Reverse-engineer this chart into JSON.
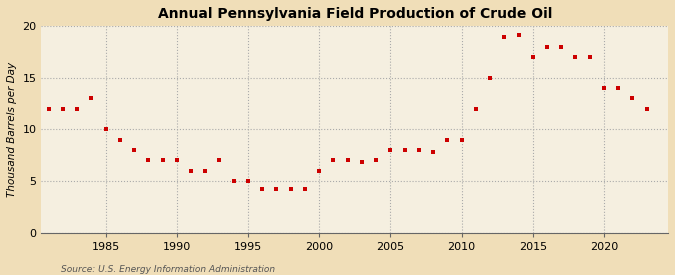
{
  "title": "Annual Pennsylvania Field Production of Crude Oil",
  "ylabel": "Thousand Barrels per Day",
  "source": "Source: U.S. Energy Information Administration",
  "outer_bg": "#f0deb8",
  "plot_bg": "#f5efe0",
  "marker_color": "#cc0000",
  "marker": "s",
  "marker_size": 3.5,
  "xlim": [
    1980.5,
    2024.5
  ],
  "ylim": [
    0,
    20
  ],
  "yticks": [
    0,
    5,
    10,
    15,
    20
  ],
  "xticks": [
    1985,
    1990,
    1995,
    2000,
    2005,
    2010,
    2015,
    2020
  ],
  "years": [
    1981,
    1982,
    1983,
    1984,
    1985,
    1986,
    1987,
    1988,
    1989,
    1990,
    1991,
    1992,
    1993,
    1994,
    1995,
    1996,
    1997,
    1998,
    1999,
    2000,
    2001,
    2002,
    2003,
    2004,
    2005,
    2006,
    2007,
    2008,
    2009,
    2010,
    2011,
    2012,
    2013,
    2014,
    2015,
    2016,
    2017,
    2018,
    2019,
    2020,
    2021,
    2022,
    2023
  ],
  "values": [
    12.0,
    12.0,
    12.0,
    13.0,
    10.0,
    9.0,
    8.0,
    7.0,
    7.0,
    7.0,
    6.0,
    6.0,
    7.0,
    5.0,
    5.0,
    4.2,
    4.2,
    4.2,
    4.2,
    6.0,
    7.0,
    7.0,
    6.8,
    7.0,
    8.0,
    8.0,
    8.0,
    7.8,
    9.0,
    9.0,
    12.0,
    15.0,
    19.0,
    19.2,
    17.0,
    18.0,
    18.0,
    17.0,
    17.0,
    14.0,
    14.0,
    13.0,
    12.0
  ],
  "grid_color": "#aaaaaa",
  "spine_color": "#666666",
  "tick_fontsize": 8,
  "ylabel_fontsize": 7.5,
  "title_fontsize": 10,
  "source_fontsize": 6.5
}
